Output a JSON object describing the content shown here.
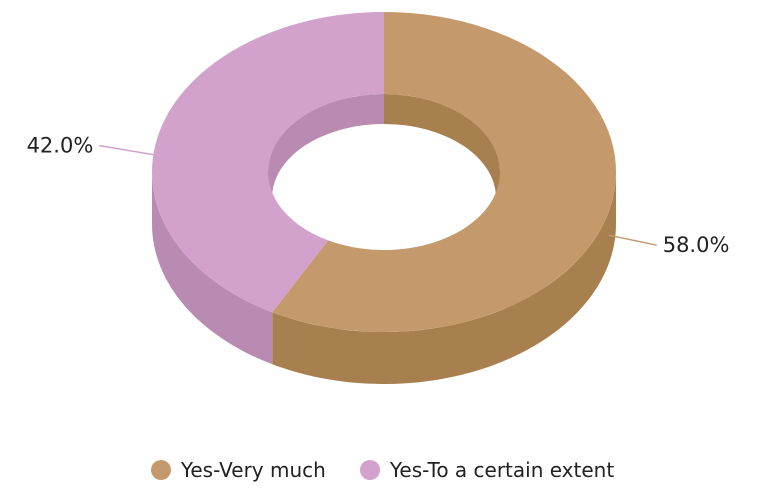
{
  "chart_data": {
    "type": "pie",
    "style": "3d-donut",
    "slices": [
      {
        "label": "Yes-Very much",
        "value": 58.0,
        "value_label": "58.0%",
        "color": "#c49a6c",
        "side_color": "#a8804f"
      },
      {
        "label": "Yes-To a certain extent",
        "value": 42.0,
        "value_label": "42.0%",
        "color": "#d2a2cc",
        "side_color": "#b98bb2"
      }
    ],
    "start_angle_deg": 0,
    "direction": "clockwise",
    "legend_position": "bottom"
  }
}
